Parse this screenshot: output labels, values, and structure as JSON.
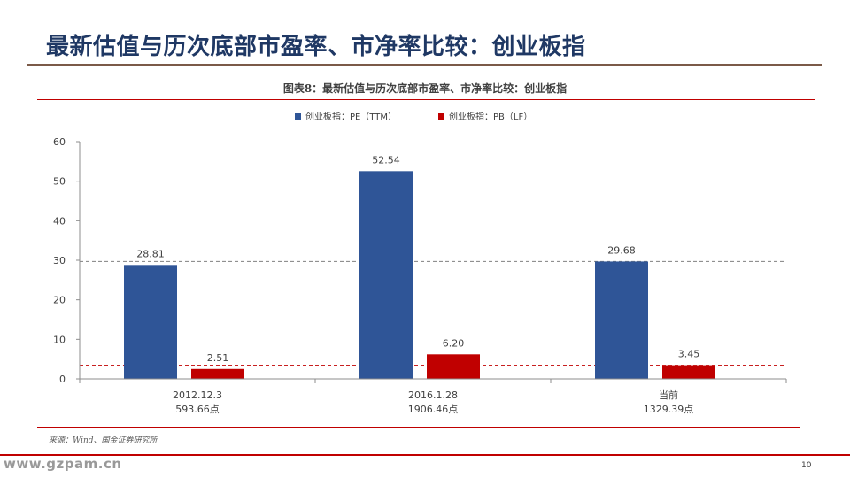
{
  "slide": {
    "title": "最新估值与历次底部市盈率、市净率比较：创业板指",
    "caption": "图表8：最新估值与历次底部市盈率、市净率比较：创业板指",
    "source": "来源：Wind、国金证券研究所",
    "page_number": "10",
    "watermark": "www.gzpam.cn"
  },
  "colors": {
    "title": "#1f3864",
    "pe": "#2f5597",
    "pb": "#c00000",
    "rule": "#c00000"
  },
  "chart_data": {
    "type": "bar",
    "categories": [
      "2012.12.3",
      "2016.1.28",
      "当前"
    ],
    "category_sublabels": [
      "593.66点",
      "1906.46点",
      "1329.39点"
    ],
    "series": [
      {
        "name": "创业板指：PE（TTM）",
        "values": [
          28.81,
          52.54,
          29.68
        ],
        "color": "#2f5597"
      },
      {
        "name": "创业板指：PB（LF）",
        "values": [
          2.51,
          6.2,
          3.45
        ],
        "color": "#c00000"
      }
    ],
    "value_labels": [
      [
        "28.81",
        "52.54",
        "29.68"
      ],
      [
        "2.51",
        "6.20",
        "3.45"
      ]
    ],
    "y_ticks": [
      "0",
      "10",
      "20",
      "30",
      "40",
      "50",
      "60"
    ],
    "ylim": [
      0,
      60
    ],
    "reference_lines": [
      {
        "value": 29.68,
        "color": "#808080",
        "style": "dashed"
      },
      {
        "value": 3.45,
        "color": "#c00000",
        "style": "dashed"
      }
    ],
    "legend_position": "top-center",
    "grid": false
  }
}
